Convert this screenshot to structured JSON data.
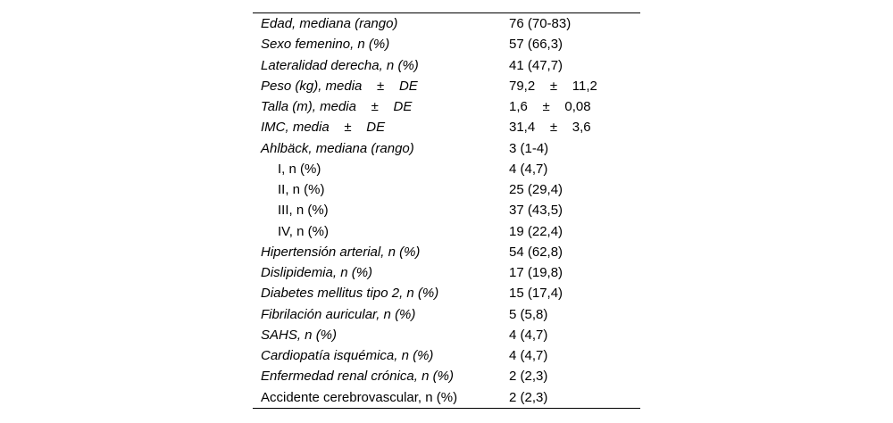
{
  "table": {
    "rows": [
      {
        "label": "Edad, mediana (rango)",
        "value": "76 (70-83)"
      },
      {
        "label": "Sexo femenino, n (%)",
        "value": "57 (66,3)"
      },
      {
        "label": "Lateralidad derecha, n (%)",
        "value": "41 (47,7)"
      },
      {
        "label": "Peso (kg), media    ±    DE",
        "value": "79,2    ±    11,2"
      },
      {
        "label": "Talla (m), media    ±    DE",
        "value": "1,6    ±    0,08"
      },
      {
        "label": "IMC, media    ±    DE",
        "value": "31,4    ±    3,6"
      },
      {
        "label": "Ahlbäck, mediana (rango)",
        "value": "3 (1-4)"
      },
      {
        "label": "I, n (%)",
        "value": "4 (4,7)"
      },
      {
        "label": "II, n (%)",
        "value": "25 (29,4)"
      },
      {
        "label": "III, n (%)",
        "value": "37 (43,5)"
      },
      {
        "label": "IV, n (%)",
        "value": "19 (22,4)"
      },
      {
        "label": "Hipertensión arterial, n (%)",
        "value": "54 (62,8)"
      },
      {
        "label": "Dislipidemia, n (%)",
        "value": "17 (19,8)"
      },
      {
        "label": "Diabetes mellitus tipo 2, n (%)",
        "value": "15 (17,4)"
      },
      {
        "label": "Fibrilación auricular, n (%)",
        "value": "5 (5,8)"
      },
      {
        "label": "SAHS, n (%)",
        "value": "4 (4,7)"
      },
      {
        "label": "Cardiopatía isquémica, n (%)",
        "value": "4 (4,7)"
      },
      {
        "label": "Enfermedad renal crónica, n (%)",
        "value": "2 (2,3)"
      },
      {
        "label": "Accidente cerebrovascular, n (%)",
        "value": "2 (2,3)"
      }
    ],
    "rule_color": "#000000",
    "text_color": "#000000"
  }
}
